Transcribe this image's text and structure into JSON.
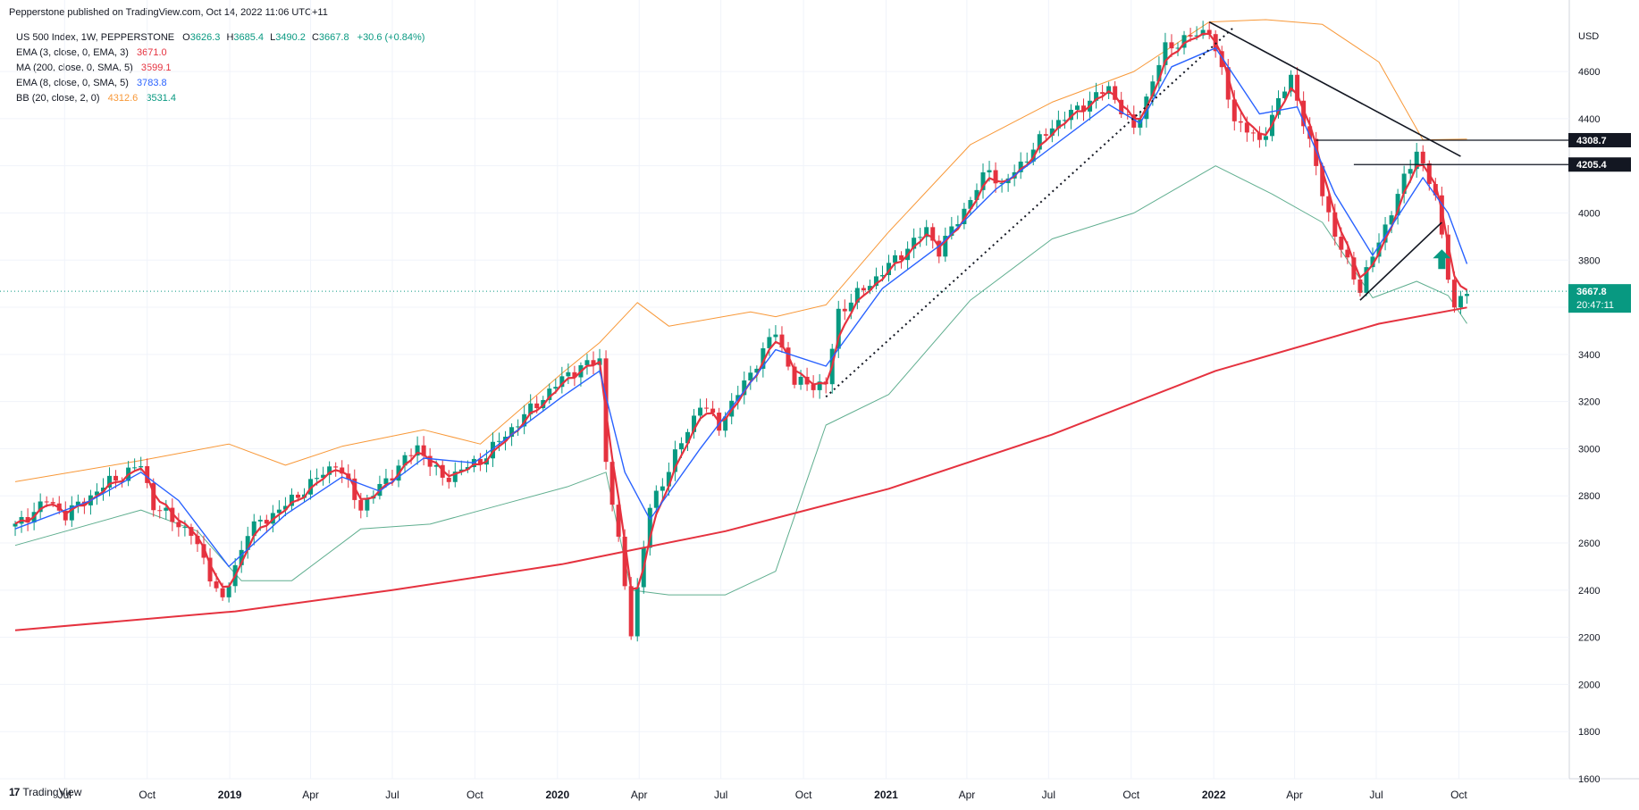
{
  "header": {
    "publisher": "Pepperstone published on TradingView.com, Oct 14, 2022 11:06 UTC+11"
  },
  "legend": {
    "symbol_line": "US 500 Index, 1W, PEPPERSTONE",
    "ohlc": {
      "o_label": "O",
      "o": "3626.3",
      "h_label": "H",
      "h": "3685.4",
      "l_label": "L",
      "l": "3490.2",
      "c_label": "C",
      "c": "3667.8",
      "change": "+30.6 (+0.84%)"
    },
    "indicators": [
      {
        "name": "EMA (3, close, 0, EMA, 3)",
        "value": "3671.0",
        "color": "#e5323f"
      },
      {
        "name": "MA (200, close, 0, SMA, 5)",
        "value": "3599.1",
        "color": "#e5323f"
      },
      {
        "name": "EMA (8, close, 0, SMA, 5)",
        "value": "3783.8",
        "color": "#2962ff"
      },
      {
        "name": "BB (20, close, 2, 0)",
        "value": "4312.6",
        "value2": "3531.4",
        "color": "#f89838",
        "color2": "#089981"
      }
    ]
  },
  "footer": {
    "brand": "TradingView",
    "logo": "17"
  },
  "colors": {
    "up": "#089981",
    "down": "#e5323f",
    "ema3": "#e5323f",
    "ma200": "#e5323f",
    "ema8": "#2962ff",
    "bb_upper": "#f89838",
    "bb_lower": "#5fae8f",
    "grid": "#f0f3fa"
  },
  "chart_data": {
    "type": "candlestick",
    "timeframe": "1W",
    "y_axis": {
      "unit": "USD",
      "ticks": [
        1600,
        1800,
        2000,
        2200,
        2400,
        2600,
        2800,
        3000,
        3200,
        3400,
        3600,
        3800,
        4000,
        4200,
        4400,
        4600
      ],
      "ylim": [
        1600,
        4820
      ]
    },
    "x_axis": {
      "labels": [
        {
          "label": "Jul",
          "date": "2018-07-01",
          "bold": false
        },
        {
          "label": "Oct",
          "date": "2018-10-01",
          "bold": false
        },
        {
          "label": "2019",
          "date": "2019-01-01",
          "bold": true
        },
        {
          "label": "Apr",
          "date": "2019-04-01",
          "bold": false
        },
        {
          "label": "Jul",
          "date": "2019-07-01",
          "bold": false
        },
        {
          "label": "Oct",
          "date": "2019-10-01",
          "bold": false
        },
        {
          "label": "2020",
          "date": "2020-01-01",
          "bold": true
        },
        {
          "label": "Apr",
          "date": "2020-04-01",
          "bold": false
        },
        {
          "label": "Jul",
          "date": "2020-07-01",
          "bold": false
        },
        {
          "label": "Oct",
          "date": "2020-10-01",
          "bold": false
        },
        {
          "label": "2021",
          "date": "2021-01-01",
          "bold": true
        },
        {
          "label": "Apr",
          "date": "2021-04-01",
          "bold": false
        },
        {
          "label": "Jul",
          "date": "2021-07-01",
          "bold": false
        },
        {
          "label": "Oct",
          "date": "2021-10-01",
          "bold": false
        },
        {
          "label": "2022",
          "date": "2022-01-01",
          "bold": true
        },
        {
          "label": "Apr",
          "date": "2022-04-01",
          "bold": false
        },
        {
          "label": "Jul",
          "date": "2022-07-01",
          "bold": false
        },
        {
          "label": "Oct",
          "date": "2022-10-01",
          "bold": false
        }
      ],
      "range": [
        "2018-04-30",
        "2023-02-01"
      ]
    },
    "price_path": [
      [
        "2018-05-07",
        2670
      ],
      [
        "2018-06-11",
        2780
      ],
      [
        "2018-07-02",
        2720
      ],
      [
        "2018-08-20",
        2860
      ],
      [
        "2018-09-24",
        2930
      ],
      [
        "2018-10-08",
        2760
      ],
      [
        "2018-10-29",
        2700
      ],
      [
        "2018-11-19",
        2640
      ],
      [
        "2018-12-24",
        2350
      ],
      [
        "2019-01-21",
        2650
      ],
      [
        "2019-03-04",
        2760
      ],
      [
        "2019-04-29",
        2940
      ],
      [
        "2019-05-27",
        2750
      ],
      [
        "2019-07-29",
        3010
      ],
      [
        "2019-08-26",
        2870
      ],
      [
        "2019-10-07",
        2950
      ],
      [
        "2019-11-25",
        3140
      ],
      [
        "2020-01-13",
        3320
      ],
      [
        "2020-02-17",
        3380
      ],
      [
        "2020-02-24",
        2950
      ],
      [
        "2020-03-09",
        2600
      ],
      [
        "2020-03-23",
        2230
      ],
      [
        "2020-04-13",
        2750
      ],
      [
        "2020-06-08",
        3190
      ],
      [
        "2020-06-29",
        3100
      ],
      [
        "2020-08-31",
        3500
      ],
      [
        "2020-09-21",
        3280
      ],
      [
        "2020-10-26",
        3270
      ],
      [
        "2020-11-09",
        3580
      ],
      [
        "2020-12-28",
        3750
      ],
      [
        "2021-02-15",
        3930
      ],
      [
        "2021-03-01",
        3840
      ],
      [
        "2021-04-26",
        4190
      ],
      [
        "2021-05-10",
        4110
      ],
      [
        "2021-07-05",
        4370
      ],
      [
        "2021-09-06",
        4530
      ],
      [
        "2021-10-04",
        4350
      ],
      [
        "2021-11-08",
        4700
      ],
      [
        "2021-12-27",
        4780
      ],
      [
        "2022-01-24",
        4400
      ],
      [
        "2022-02-21",
        4300
      ],
      [
        "2022-03-28",
        4580
      ],
      [
        "2022-05-16",
        3900
      ],
      [
        "2022-06-13",
        3680
      ],
      [
        "2022-07-04",
        3880
      ],
      [
        "2022-08-15",
        4270
      ],
      [
        "2022-09-05",
        4060
      ],
      [
        "2022-09-26",
        3590
      ],
      [
        "2022-10-10",
        3668
      ]
    ],
    "ema8_path": [
      [
        "2018-05-07",
        2660
      ],
      [
        "2018-07-30",
        2780
      ],
      [
        "2018-09-24",
        2900
      ],
      [
        "2018-11-05",
        2780
      ],
      [
        "2018-12-31",
        2500
      ],
      [
        "2019-03-04",
        2720
      ],
      [
        "2019-05-06",
        2880
      ],
      [
        "2019-06-17",
        2820
      ],
      [
        "2019-08-05",
        2960
      ],
      [
        "2019-09-30",
        2940
      ],
      [
        "2020-01-06",
        3220
      ],
      [
        "2020-02-17",
        3330
      ],
      [
        "2020-03-16",
        2900
      ],
      [
        "2020-04-13",
        2700
      ],
      [
        "2020-06-08",
        3000
      ],
      [
        "2020-08-31",
        3420
      ],
      [
        "2020-10-26",
        3350
      ],
      [
        "2020-12-28",
        3680
      ],
      [
        "2021-03-01",
        3860
      ],
      [
        "2021-05-03",
        4100
      ],
      [
        "2021-07-05",
        4280
      ],
      [
        "2021-09-06",
        4460
      ],
      [
        "2021-10-11",
        4380
      ],
      [
        "2021-11-15",
        4620
      ],
      [
        "2022-01-03",
        4700
      ],
      [
        "2022-02-21",
        4420
      ],
      [
        "2022-04-04",
        4450
      ],
      [
        "2022-05-16",
        4080
      ],
      [
        "2022-06-27",
        3820
      ],
      [
        "2022-08-22",
        4150
      ],
      [
        "2022-09-19",
        4000
      ],
      [
        "2022-10-10",
        3784
      ]
    ],
    "ma200_path": [
      [
        "2018-05-07",
        2230
      ],
      [
        "2019-01-07",
        2310
      ],
      [
        "2019-07-01",
        2400
      ],
      [
        "2020-01-06",
        2510
      ],
      [
        "2020-07-06",
        2650
      ],
      [
        "2021-01-04",
        2830
      ],
      [
        "2021-07-05",
        3060
      ],
      [
        "2022-01-03",
        3330
      ],
      [
        "2022-07-04",
        3530
      ],
      [
        "2022-10-10",
        3599
      ]
    ],
    "bb_upper_path": [
      [
        "2018-05-07",
        2860
      ],
      [
        "2018-09-24",
        2950
      ],
      [
        "2018-12-31",
        3020
      ],
      [
        "2019-03-04",
        2930
      ],
      [
        "2019-05-06",
        3010
      ],
      [
        "2019-08-05",
        3080
      ],
      [
        "2019-10-07",
        3020
      ],
      [
        "2020-01-06",
        3320
      ],
      [
        "2020-02-17",
        3450
      ],
      [
        "2020-03-30",
        3620
      ],
      [
        "2020-05-04",
        3520
      ],
      [
        "2020-08-03",
        3580
      ],
      [
        "2020-08-31",
        3560
      ],
      [
        "2020-10-26",
        3610
      ],
      [
        "2021-01-04",
        3920
      ],
      [
        "2021-04-05",
        4290
      ],
      [
        "2021-07-05",
        4470
      ],
      [
        "2021-10-04",
        4600
      ],
      [
        "2021-12-27",
        4810
      ],
      [
        "2022-02-28",
        4820
      ],
      [
        "2022-05-02",
        4800
      ],
      [
        "2022-07-04",
        4640
      ],
      [
        "2022-08-22",
        4310
      ],
      [
        "2022-10-10",
        4313
      ]
    ],
    "bb_lower_path": [
      [
        "2018-05-07",
        2590
      ],
      [
        "2018-09-24",
        2740
      ],
      [
        "2018-11-26",
        2650
      ],
      [
        "2019-01-14",
        2440
      ],
      [
        "2019-03-11",
        2440
      ],
      [
        "2019-05-27",
        2660
      ],
      [
        "2019-08-12",
        2680
      ],
      [
        "2019-10-28",
        2760
      ],
      [
        "2020-01-13",
        2840
      ],
      [
        "2020-02-24",
        2900
      ],
      [
        "2020-03-23",
        2400
      ],
      [
        "2020-05-04",
        2380
      ],
      [
        "2020-07-06",
        2380
      ],
      [
        "2020-08-31",
        2480
      ],
      [
        "2020-10-26",
        3100
      ],
      [
        "2021-01-04",
        3230
      ],
      [
        "2021-04-05",
        3630
      ],
      [
        "2021-07-05",
        3890
      ],
      [
        "2021-10-04",
        4000
      ],
      [
        "2022-01-03",
        4200
      ],
      [
        "2022-03-07",
        4080
      ],
      [
        "2022-05-02",
        3960
      ],
      [
        "2022-06-27",
        3640
      ],
      [
        "2022-08-15",
        3710
      ],
      [
        "2022-09-19",
        3650
      ],
      [
        "2022-10-10",
        3531
      ]
    ],
    "price_levels": [
      {
        "label": "4308.7",
        "value": 4308.7,
        "from": "2022-04-25",
        "to": "2023-01-20"
      },
      {
        "label": "4205.4",
        "value": 4205.4,
        "from": "2022-06-06",
        "to": "2023-01-20"
      }
    ],
    "last_price": {
      "label": "3667.8",
      "countdown": "20:47:11",
      "value": 3667.8
    },
    "trend_lines": [
      {
        "style": "solid",
        "from": [
          "2021-12-27",
          4810
        ],
        "to": [
          "2022-10-03",
          4240
        ]
      },
      {
        "style": "dotted",
        "from": [
          "2020-10-26",
          3220
        ],
        "to": [
          "2022-01-24",
          4790
        ]
      },
      {
        "style": "solid",
        "from": [
          "2022-06-13",
          3630
        ],
        "to": [
          "2022-09-12",
          3960
        ]
      }
    ],
    "annotation_arrow": {
      "date": "2022-09-12",
      "value": 3800,
      "direction": "up",
      "color": "#089981"
    }
  }
}
